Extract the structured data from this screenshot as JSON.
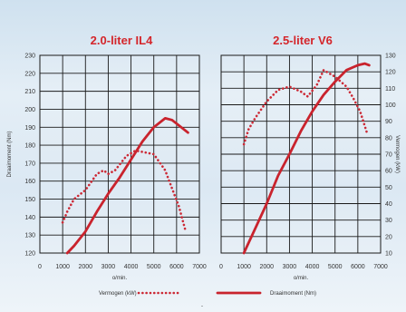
{
  "chart_data": [
    {
      "type": "line",
      "title": "2.0-liter IL4",
      "xlabel": "o/min.",
      "ylabel": "Draaimoment (Nm)",
      "xlim": [
        0,
        7000
      ],
      "xticks": [
        0,
        1000,
        2000,
        3000,
        4000,
        5000,
        6000,
        7000
      ],
      "ylim": [
        120,
        230
      ],
      "yticks": [
        120,
        130,
        140,
        150,
        160,
        170,
        180,
        190,
        200,
        210,
        220,
        230
      ],
      "legend": "bottom",
      "grid": true,
      "series": [
        {
          "name": "Draaimoment (Nm)",
          "style": "solid",
          "color": "#c9232d",
          "x": [
            1200,
            1500,
            2000,
            2500,
            3000,
            3500,
            4000,
            4500,
            5000,
            5500,
            5800,
            6000,
            6500
          ],
          "y": [
            120,
            124,
            132,
            143,
            153,
            162,
            172,
            182,
            190,
            195,
            194,
            192,
            187
          ]
        },
        {
          "name": "Vermogen (kW)",
          "style": "dotted",
          "color": "#cc2a36",
          "x": [
            1000,
            1200,
            1500,
            2000,
            2500,
            2800,
            3000,
            3300,
            3800,
            4200,
            4600,
            5000,
            5500,
            5800,
            6100,
            6400
          ],
          "y": [
            137,
            143,
            150,
            155,
            164,
            166,
            164,
            166,
            174,
            177,
            176,
            175,
            166,
            156,
            146,
            132
          ]
        }
      ]
    },
    {
      "type": "line",
      "title": "2.5-liter V6",
      "xlabel": "o/min.",
      "ylabel": "Vermogen (kW)",
      "xlim": [
        0,
        7000
      ],
      "xticks": [
        0,
        1000,
        2000,
        3000,
        4000,
        5000,
        6000,
        7000
      ],
      "ylim": [
        10,
        130
      ],
      "yticks": [
        10,
        20,
        30,
        40,
        50,
        60,
        70,
        80,
        90,
        100,
        110,
        120,
        130
      ],
      "legend": "bottom",
      "grid": true,
      "series": [
        {
          "name": "Draaimoment (Nm)",
          "style": "solid",
          "color": "#c9232d",
          "x": [
            1000,
            1500,
            2000,
            2500,
            3000,
            3500,
            4000,
            4500,
            5000,
            5500,
            6000,
            6300,
            6500
          ],
          "y": [
            10,
            25,
            40,
            57,
            70,
            84,
            96,
            106,
            114,
            121,
            124,
            125,
            124
          ]
        },
        {
          "name": "Vermogen (kW)",
          "style": "dotted",
          "color": "#cc2a36",
          "x": [
            1000,
            1200,
            1500,
            2000,
            2500,
            3000,
            3500,
            3800,
            4200,
            4500,
            5000,
            5500,
            5800,
            6100,
            6400
          ],
          "y": [
            76,
            85,
            92,
            102,
            109,
            111,
            108,
            105,
            112,
            121,
            117,
            111,
            104,
            96,
            83
          ]
        }
      ]
    }
  ],
  "legend": {
    "power_label": "Vermogen (kW)",
    "torque_label": "Draaimoment (Nm)"
  },
  "footer": {
    "mark": "-"
  }
}
